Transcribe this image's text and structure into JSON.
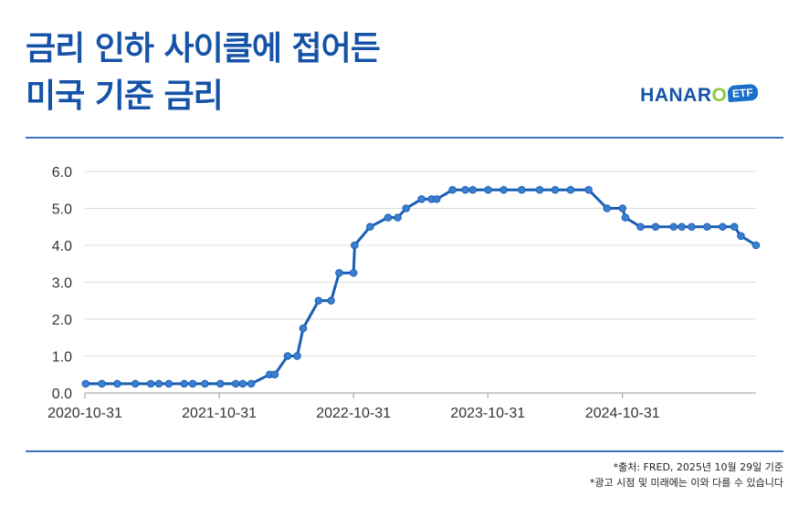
{
  "title": {
    "line1": "금리 인하 사이클에 접어든",
    "line2": "미국 기준 금리"
  },
  "logo": {
    "text_main": "HANAR",
    "text_o": "O",
    "badge": "ETF"
  },
  "footnotes": {
    "source": "*출처: FRED, 2025년 10월 29일 기준",
    "disclaimer": "*광고 시점 및 미래에는 이와 다를 수 있습니다"
  },
  "colors": {
    "title": "#1553a8",
    "line": "#1a5fb4",
    "marker": "#3b7fd0",
    "rule": "#3a78c2"
  },
  "chart_data": {
    "type": "line",
    "title": "",
    "xlabel": "",
    "ylabel": "",
    "ylim": [
      0,
      6
    ],
    "yticks": [
      0.0,
      1.0,
      2.0,
      3.0,
      4.0,
      5.0,
      6.0
    ],
    "ytick_labels": [
      "0.0",
      "1.0",
      "2.0",
      "3.0",
      "4.0",
      "5.0",
      "6.0"
    ],
    "xlim": [
      "2020-10-31",
      "2025-10-29"
    ],
    "xticks": [
      "2020-10-31",
      "2021-10-31",
      "2022-10-31",
      "2023-10-31",
      "2024-10-31"
    ],
    "xtick_labels": [
      "2020-10-31",
      "2021-10-31",
      "2022-10-31",
      "2023-10-31",
      "2024-10-31"
    ],
    "grid": "horizontal",
    "series": [
      {
        "x": [
          "2020-11-02",
          "2020-12-16",
          "2021-01-27",
          "2021-03-17",
          "2021-04-28",
          "2021-05-20",
          "2021-06-16",
          "2021-07-28",
          "2021-08-20",
          "2021-09-22",
          "2021-11-03",
          "2021-12-15",
          "2022-01-03",
          "2022-01-26",
          "2022-03-17",
          "2022-03-31",
          "2022-05-05",
          "2022-05-31",
          "2022-06-16",
          "2022-07-28",
          "2022-08-31",
          "2022-09-22",
          "2022-10-31",
          "2022-11-03",
          "2022-12-15",
          "2023-02-02",
          "2023-02-28",
          "2023-03-23",
          "2023-05-04",
          "2023-05-31",
          "2023-06-14",
          "2023-07-27",
          "2023-08-31",
          "2023-09-20",
          "2023-11-01",
          "2023-12-13",
          "2024-01-31",
          "2024-03-20",
          "2024-05-01",
          "2024-06-12",
          "2024-07-31",
          "2024-09-19",
          "2024-10-31",
          "2024-11-08",
          "2024-12-19",
          "2025-01-29",
          "2025-03-19",
          "2025-04-10",
          "2025-05-07",
          "2025-06-18",
          "2025-07-30",
          "2025-08-31",
          "2025-09-18",
          "2025-10-29"
        ],
        "values": [
          0.25,
          0.25,
          0.25,
          0.25,
          0.25,
          0.25,
          0.25,
          0.25,
          0.25,
          0.25,
          0.25,
          0.25,
          0.25,
          0.25,
          0.5,
          0.5,
          1.0,
          1.0,
          1.75,
          2.5,
          2.5,
          3.25,
          3.25,
          4.0,
          4.5,
          4.75,
          4.75,
          5.0,
          5.25,
          5.25,
          5.25,
          5.5,
          5.5,
          5.5,
          5.5,
          5.5,
          5.5,
          5.5,
          5.5,
          5.5,
          5.5,
          5.0,
          5.0,
          4.75,
          4.5,
          4.5,
          4.5,
          4.5,
          4.5,
          4.5,
          4.5,
          4.5,
          4.25,
          4.0
        ]
      }
    ]
  }
}
